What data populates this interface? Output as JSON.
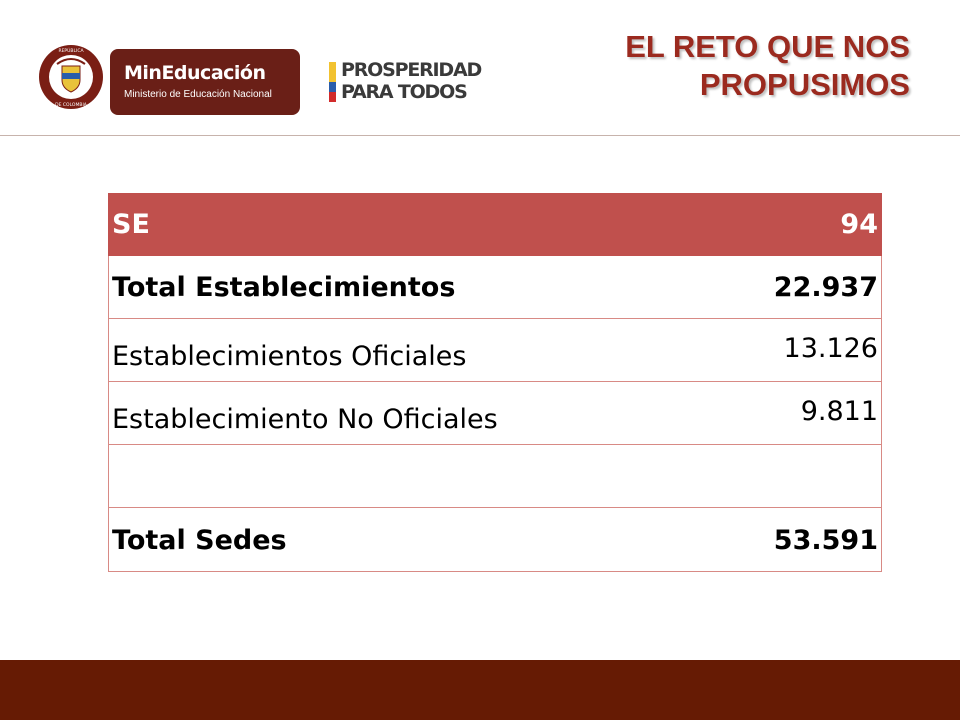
{
  "header": {
    "seal_text": "REPÚBLICA DE COLOMBIA",
    "ministry_title": "MinEducación",
    "ministry_subtitle": "Ministerio de Educación Nacional",
    "prosperity_line1": "PROSPERIDAD",
    "prosperity_line2": "PARA TODOS",
    "slide_title_line1": "EL RETO QUE NOS",
    "slide_title_line2": "PROPUSIMOS"
  },
  "table": {
    "rows": [
      {
        "label": "SE",
        "value": "94"
      },
      {
        "label": "Total Establecimientos",
        "value": "22.937"
      },
      {
        "label": "Establecimientos Oficiales",
        "value": "13.126"
      },
      {
        "label": "Establecimiento No Oficiales",
        "value": "9.811"
      },
      {
        "label": "",
        "value": ""
      },
      {
        "label": "Total Sedes",
        "value": "53.591"
      }
    ]
  },
  "colors": {
    "brand_maroon": "#6a1f17",
    "title_red": "#9b2a1f",
    "table_header": "#c0504d",
    "table_rule": "#d88a85",
    "footer": "#661b04"
  }
}
